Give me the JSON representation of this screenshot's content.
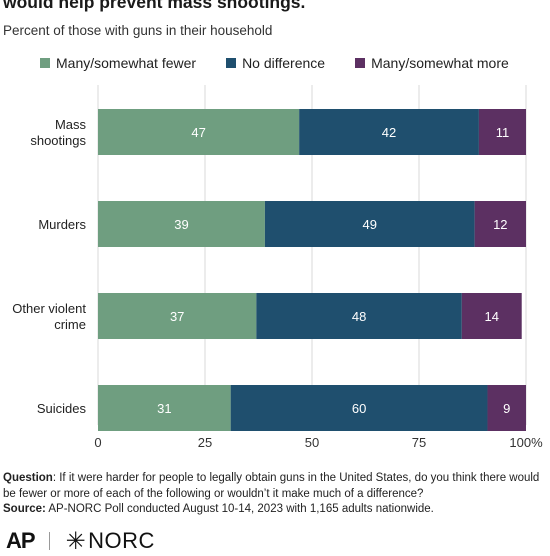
{
  "header": {
    "title": "would help prevent mass shootings.",
    "subtitle": "Percent of those with guns in their household"
  },
  "colors": {
    "fewer": "#6f9e80",
    "no_difference": "#1f4f6e",
    "more": "#5c3062",
    "grid": "#d9d9d9",
    "bar_label": "#ffffff"
  },
  "legend": [
    {
      "label": "Many/somewhat fewer",
      "color_key": "fewer"
    },
    {
      "label": "No difference",
      "color_key": "no_difference"
    },
    {
      "label": "Many/somewhat more",
      "color_key": "more"
    }
  ],
  "chart_data": {
    "type": "bar",
    "orientation": "horizontal",
    "stacked": true,
    "categories": [
      [
        "Mass",
        "shootings"
      ],
      [
        "Murders"
      ],
      [
        "Other violent",
        "crime"
      ],
      [
        "Suicides"
      ]
    ],
    "series": [
      {
        "name": "Many/somewhat fewer",
        "values": [
          47,
          39,
          37,
          31
        ]
      },
      {
        "name": "No difference",
        "values": [
          42,
          49,
          48,
          60
        ]
      },
      {
        "name": "Many/somewhat more",
        "values": [
          11,
          12,
          14,
          9
        ]
      }
    ],
    "xlim": [
      0,
      100
    ],
    "xticks": [
      0,
      25,
      50,
      75,
      100
    ],
    "xtick_labels": [
      "0",
      "25",
      "50",
      "75",
      "100%"
    ],
    "grid": true,
    "legend_position": "top"
  },
  "footnote": {
    "question_label": "Question",
    "question_text": ": If it were harder for people to legally obtain guns in the United States, do you think there would be fewer or more of each of the following or wouldn’t it make much of a difference?",
    "source_label": "Source:",
    "source_text": " AP-NORC Poll conducted August 10-14, 2023 with 1,165 adults nationwide."
  },
  "logos": {
    "ap": "AP",
    "norc": "NORC"
  }
}
